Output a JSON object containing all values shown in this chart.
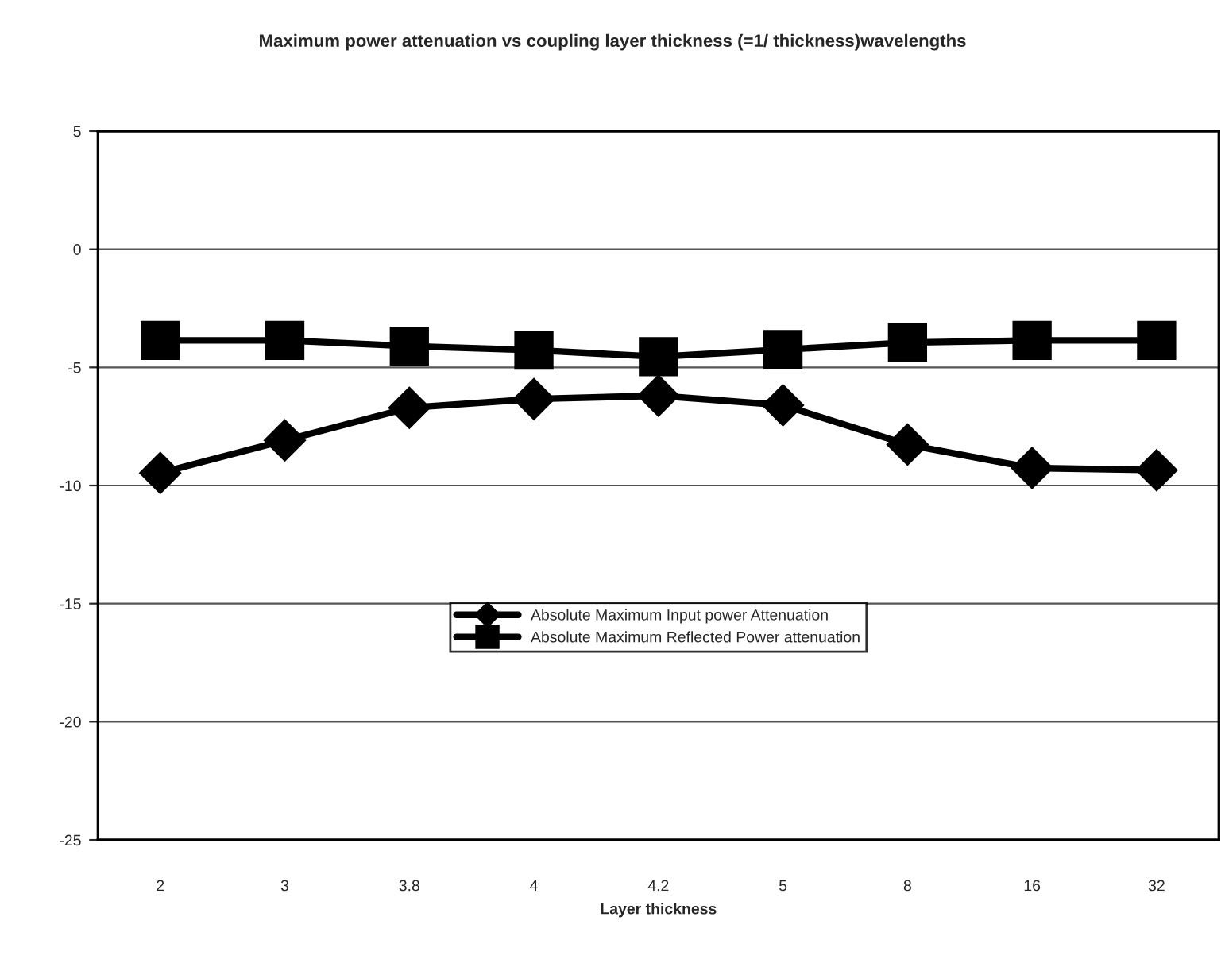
{
  "chart_data": {
    "type": "line",
    "title": "Maximum power attenuation vs coupling layer thickness (=1/ thickness)wavelengths",
    "xlabel": "Layer thickness",
    "categories": [
      "2",
      "3",
      "3.8",
      "4",
      "4.2",
      "5",
      "8",
      "16",
      "32"
    ],
    "series": [
      {
        "name": "Absolute Maximum Input power Attenuation",
        "color": "#000000",
        "marker": "diamond",
        "values": [
          -9.47,
          -8.09,
          -6.71,
          -6.34,
          -6.2,
          -6.6,
          -8.27,
          -9.26,
          -9.35
        ]
      },
      {
        "name": "Absolute Maximum Reflected Power attenuation",
        "color": "#000000",
        "marker": "square",
        "values": [
          -3.86,
          -3.86,
          -4.1,
          -4.27,
          -4.55,
          -4.25,
          -3.95,
          -3.86,
          -3.86
        ]
      }
    ],
    "ylim": [
      -25,
      5
    ],
    "yticks": [
      -25,
      -20,
      -15,
      -10,
      -5,
      0,
      5
    ],
    "grid": "y",
    "legend": "center",
    "line_style": "solid"
  }
}
